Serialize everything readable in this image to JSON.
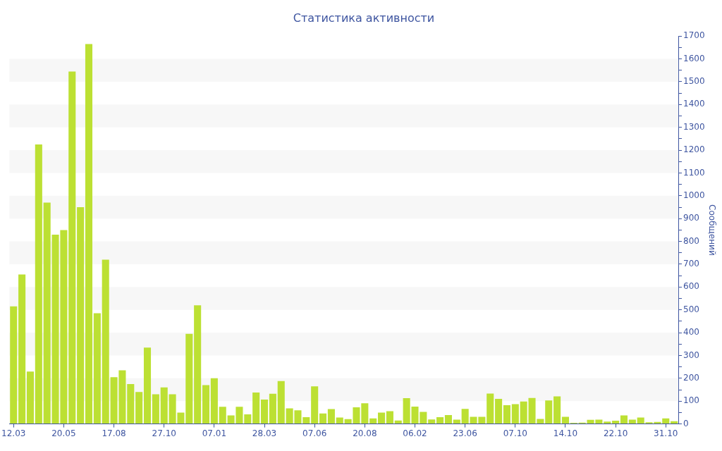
{
  "chart_data": {
    "type": "bar",
    "title": "Статистика активности",
    "ylabel": "Сообщений",
    "categories": [
      "12.03",
      null,
      null,
      null,
      null,
      null,
      "20.05",
      null,
      null,
      null,
      null,
      null,
      "17.08",
      null,
      null,
      null,
      null,
      null,
      "27.10",
      null,
      null,
      null,
      null,
      null,
      "07.01",
      null,
      null,
      null,
      null,
      null,
      "28.03",
      null,
      null,
      null,
      null,
      null,
      "07.06",
      null,
      null,
      null,
      null,
      null,
      "20.08",
      null,
      null,
      null,
      null,
      null,
      "06.02",
      null,
      null,
      null,
      null,
      null,
      "23.06",
      null,
      null,
      null,
      null,
      null,
      "07.10",
      null,
      null,
      null,
      null,
      null,
      "14.10",
      null,
      null,
      null,
      null,
      null,
      "22.10",
      null,
      null,
      null,
      null,
      null,
      "31.10",
      null
    ],
    "series": [
      {
        "color": "#bce033",
        "values": [
          515,
          655,
          230,
          1225,
          970,
          830,
          850,
          1545,
          950,
          1665,
          485,
          720,
          205,
          235,
          175,
          140,
          335,
          130,
          160,
          130,
          50,
          395,
          520,
          170,
          200,
          75,
          37,
          75,
          42,
          138,
          107,
          132,
          188,
          68,
          60,
          30,
          165,
          46,
          65,
          28,
          21,
          73,
          91,
          24,
          50,
          56,
          15,
          113,
          76,
          53,
          20,
          30,
          39,
          19,
          66,
          31,
          31,
          133,
          110,
          82,
          87,
          98,
          114,
          22,
          103,
          121,
          31,
          5,
          6,
          18,
          19,
          10,
          14,
          37,
          19,
          28,
          7,
          9,
          24,
          12
        ]
      }
    ],
    "ylim": [
      0,
      1700
    ],
    "yticks": [
      0,
      {
        "value": 50,
        "label": null
      },
      100,
      {
        "value": 150,
        "label": null
      },
      200,
      {
        "value": 250,
        "label": null
      },
      300,
      {
        "value": 350,
        "label": null
      },
      400,
      {
        "value": 450,
        "label": null
      },
      500,
      {
        "value": 550,
        "label": null
      },
      600,
      {
        "value": 650,
        "label": null
      },
      700,
      {
        "value": 750,
        "label": null
      },
      800,
      {
        "value": 850,
        "label": null
      },
      900,
      {
        "value": 950,
        "label": null
      },
      1000,
      {
        "value": 1050,
        "label": null
      },
      1100,
      {
        "value": 1150,
        "label": null
      },
      1200,
      {
        "value": 1250,
        "label": null
      },
      1300,
      {
        "value": 1350,
        "label": null
      },
      1400,
      {
        "value": 1450,
        "label": null
      },
      1500,
      {
        "value": 1550,
        "label": null
      },
      1600,
      {
        "value": 1650,
        "label": null
      },
      1700
    ],
    "bands": [
      {
        "axis": "y",
        "from": 100,
        "to": 200,
        "color": "#f7f7f7"
      },
      {
        "axis": "y",
        "from": 300,
        "to": 400,
        "color": "#f7f7f7"
      },
      {
        "axis": "y",
        "from": 500,
        "to": 600,
        "color": "#f7f7f7"
      },
      {
        "axis": "y",
        "from": 700,
        "to": 800,
        "color": "#f7f7f7"
      },
      {
        "axis": "y",
        "from": 900,
        "to": 1000,
        "color": "#f7f7f7"
      },
      {
        "axis": "y",
        "from": 1100,
        "to": 1200,
        "color": "#f7f7f7"
      },
      {
        "axis": "y",
        "from": 1300,
        "to": 1400,
        "color": "#f7f7f7"
      },
      {
        "axis": "y",
        "from": 1500,
        "to": 1600,
        "color": "#f7f7f7"
      }
    ]
  }
}
